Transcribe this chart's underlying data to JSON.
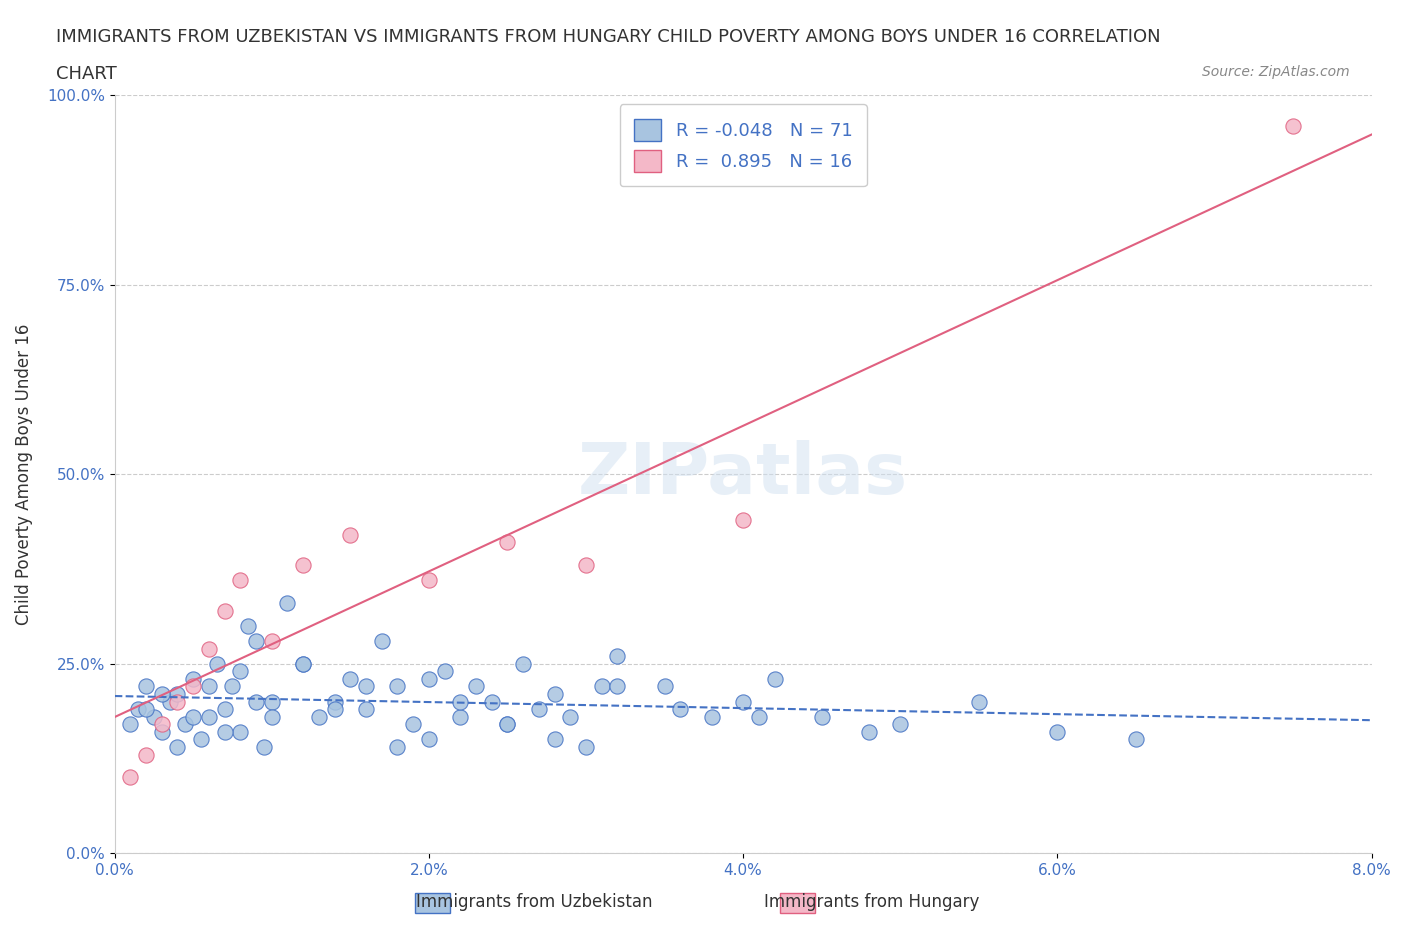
{
  "title": "IMMIGRANTS FROM UZBEKISTAN VS IMMIGRANTS FROM HUNGARY CHILD POVERTY AMONG BOYS UNDER 16 CORRELATION\nCHART",
  "source": "Source: ZipAtlas.com",
  "xlabel_ticks": [
    "0.0%",
    "2.0%",
    "4.0%",
    "6.0%",
    "8.0%"
  ],
  "xlabel_vals": [
    0.0,
    2.0,
    4.0,
    6.0,
    8.0
  ],
  "ylabel_ticks": [
    "0.0%",
    "25.0%",
    "50.0%",
    "75.0%",
    "100.0%"
  ],
  "ylabel_vals": [
    0.0,
    25.0,
    50.0,
    75.0,
    100.0
  ],
  "xlim": [
    0.0,
    8.0
  ],
  "ylim": [
    0.0,
    100.0
  ],
  "ylabel": "Child Poverty Among Boys Under 16",
  "legend_labels": [
    "Immigrants from Uzbekistan",
    "Immigrants from Hungary"
  ],
  "legend_R": [
    -0.048,
    0.895
  ],
  "legend_N": [
    71,
    16
  ],
  "uzbekistan_color": "#a8c4e0",
  "hungary_color": "#f4b8c8",
  "uzbekistan_line_color": "#4472c4",
  "hungary_line_color": "#e06080",
  "uzbekistan_scatter": {
    "x": [
      0.1,
      0.15,
      0.2,
      0.25,
      0.3,
      0.35,
      0.4,
      0.45,
      0.5,
      0.55,
      0.6,
      0.65,
      0.7,
      0.75,
      0.8,
      0.85,
      0.9,
      0.95,
      1.0,
      1.1,
      1.2,
      1.3,
      1.4,
      1.5,
      1.6,
      1.7,
      1.8,
      1.9,
      2.0,
      2.1,
      2.2,
      2.3,
      2.4,
      2.5,
      2.6,
      2.7,
      2.8,
      2.9,
      3.0,
      3.1,
      3.2,
      3.5,
      3.8,
      4.0,
      4.2,
      4.5,
      5.0,
      5.5,
      6.0,
      6.5,
      0.2,
      0.3,
      0.4,
      0.5,
      0.6,
      0.7,
      0.8,
      0.9,
      1.0,
      1.2,
      1.4,
      1.6,
      1.8,
      2.0,
      2.2,
      2.5,
      2.8,
      3.2,
      3.6,
      4.1,
      4.8
    ],
    "y": [
      17,
      19,
      22,
      18,
      16,
      20,
      21,
      17,
      23,
      15,
      18,
      25,
      19,
      22,
      16,
      30,
      28,
      14,
      20,
      33,
      25,
      18,
      20,
      23,
      19,
      28,
      22,
      17,
      15,
      24,
      18,
      22,
      20,
      17,
      25,
      19,
      21,
      18,
      14,
      22,
      26,
      22,
      18,
      20,
      23,
      18,
      17,
      20,
      16,
      15,
      19,
      21,
      14,
      18,
      22,
      16,
      24,
      20,
      18,
      25,
      19,
      22,
      14,
      23,
      20,
      17,
      15,
      22,
      19,
      18,
      16
    ]
  },
  "hungary_scatter": {
    "x": [
      0.1,
      0.2,
      0.3,
      0.4,
      0.5,
      0.6,
      0.7,
      0.8,
      1.0,
      1.2,
      1.5,
      2.0,
      2.5,
      3.0,
      4.0,
      7.5
    ],
    "y": [
      10,
      13,
      17,
      20,
      22,
      27,
      32,
      36,
      28,
      38,
      42,
      36,
      41,
      38,
      44,
      96
    ]
  },
  "watermark": "ZIPatlas",
  "background_color": "#ffffff",
  "title_fontsize": 13,
  "axis_label_fontsize": 12,
  "tick_fontsize": 11,
  "legend_fontsize": 13,
  "source_fontsize": 10
}
